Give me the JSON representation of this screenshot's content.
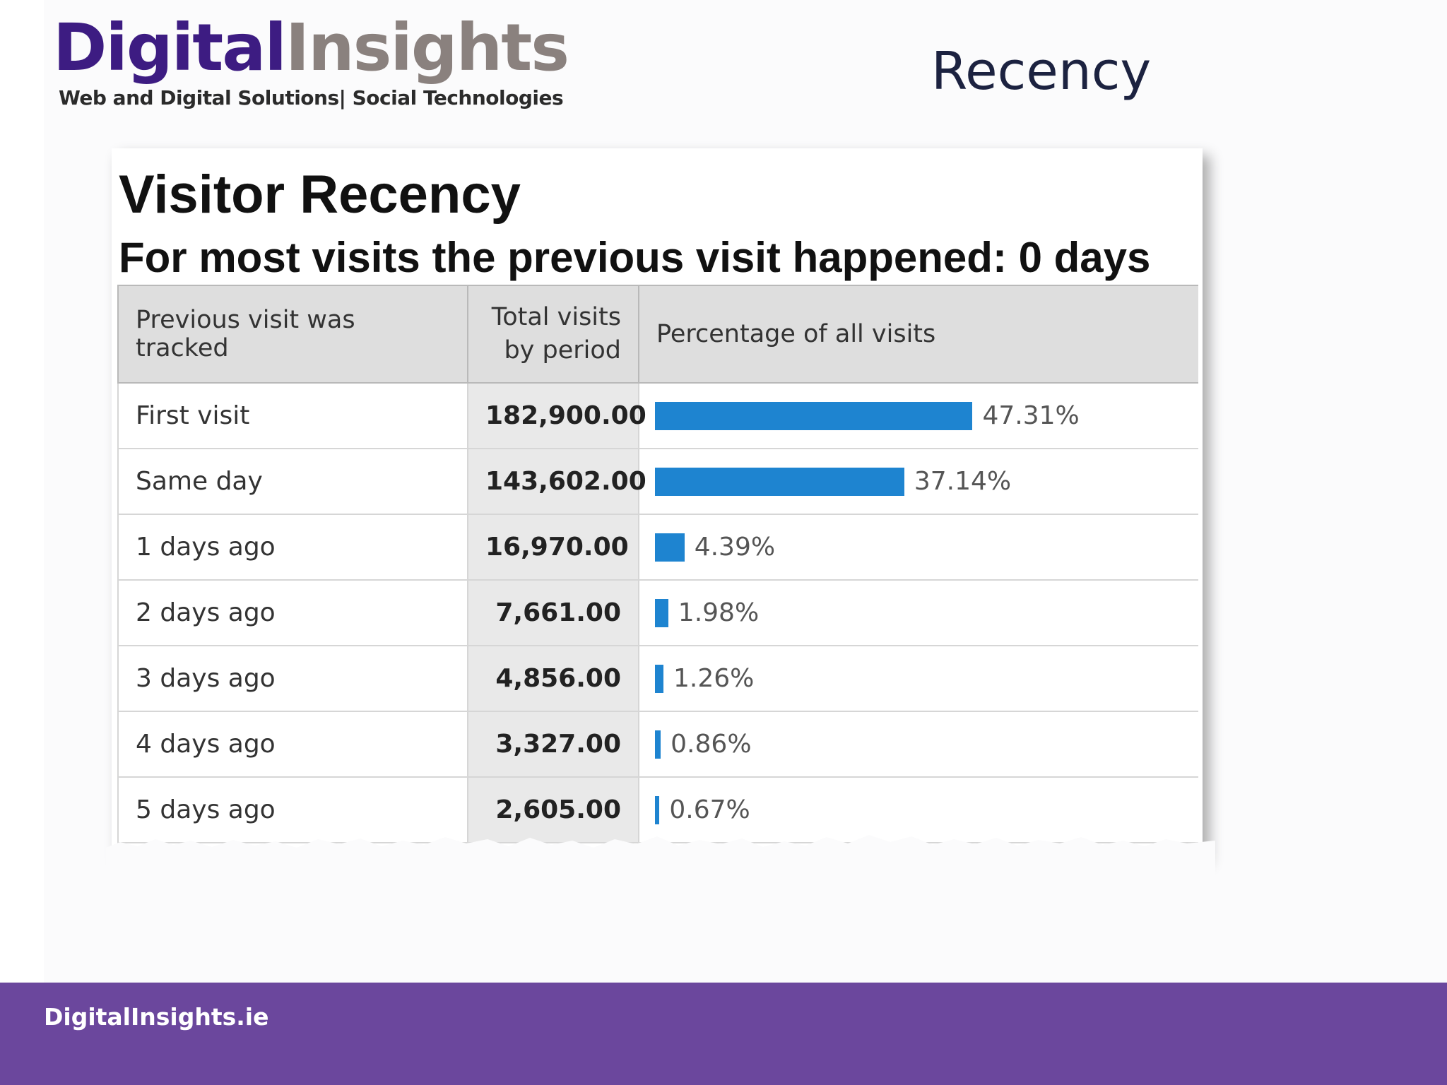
{
  "logo": {
    "word_part1": "Digital",
    "word_part2": "Insights",
    "tagline": "Web and Digital Solutions| Social Technologies"
  },
  "slide": {
    "title": "Recency"
  },
  "report": {
    "title": "Visitor Recency",
    "subtitle": "For most visits the previous visit happened: 0 days",
    "columns": {
      "period": "Previous visit was tracked",
      "visits_line1": "Total visits",
      "visits_line2": "by period",
      "percentage": "Percentage of all visits"
    },
    "rows": [
      {
        "label": "First visit",
        "visits": "182,900.00",
        "percent": 47.31,
        "percent_label": "47.31%"
      },
      {
        "label": "Same day",
        "visits": "143,602.00",
        "percent": 37.14,
        "percent_label": "37.14%"
      },
      {
        "label": "1 days ago",
        "visits": "16,970.00",
        "percent": 4.39,
        "percent_label": "4.39%"
      },
      {
        "label": "2 days ago",
        "visits": "7,661.00",
        "percent": 1.98,
        "percent_label": "1.98%"
      },
      {
        "label": "3 days ago",
        "visits": "4,856.00",
        "percent": 1.26,
        "percent_label": "1.26%"
      },
      {
        "label": "4 days ago",
        "visits": "3,327.00",
        "percent": 0.86,
        "percent_label": "0.86%"
      },
      {
        "label": "5 days ago",
        "visits": "2,605.00",
        "percent": 0.67,
        "percent_label": "0.67%"
      }
    ],
    "bar_color": "#1e84d0"
  },
  "footer": {
    "url": "DigitalInsights.ie",
    "color": "#6b479d"
  }
}
